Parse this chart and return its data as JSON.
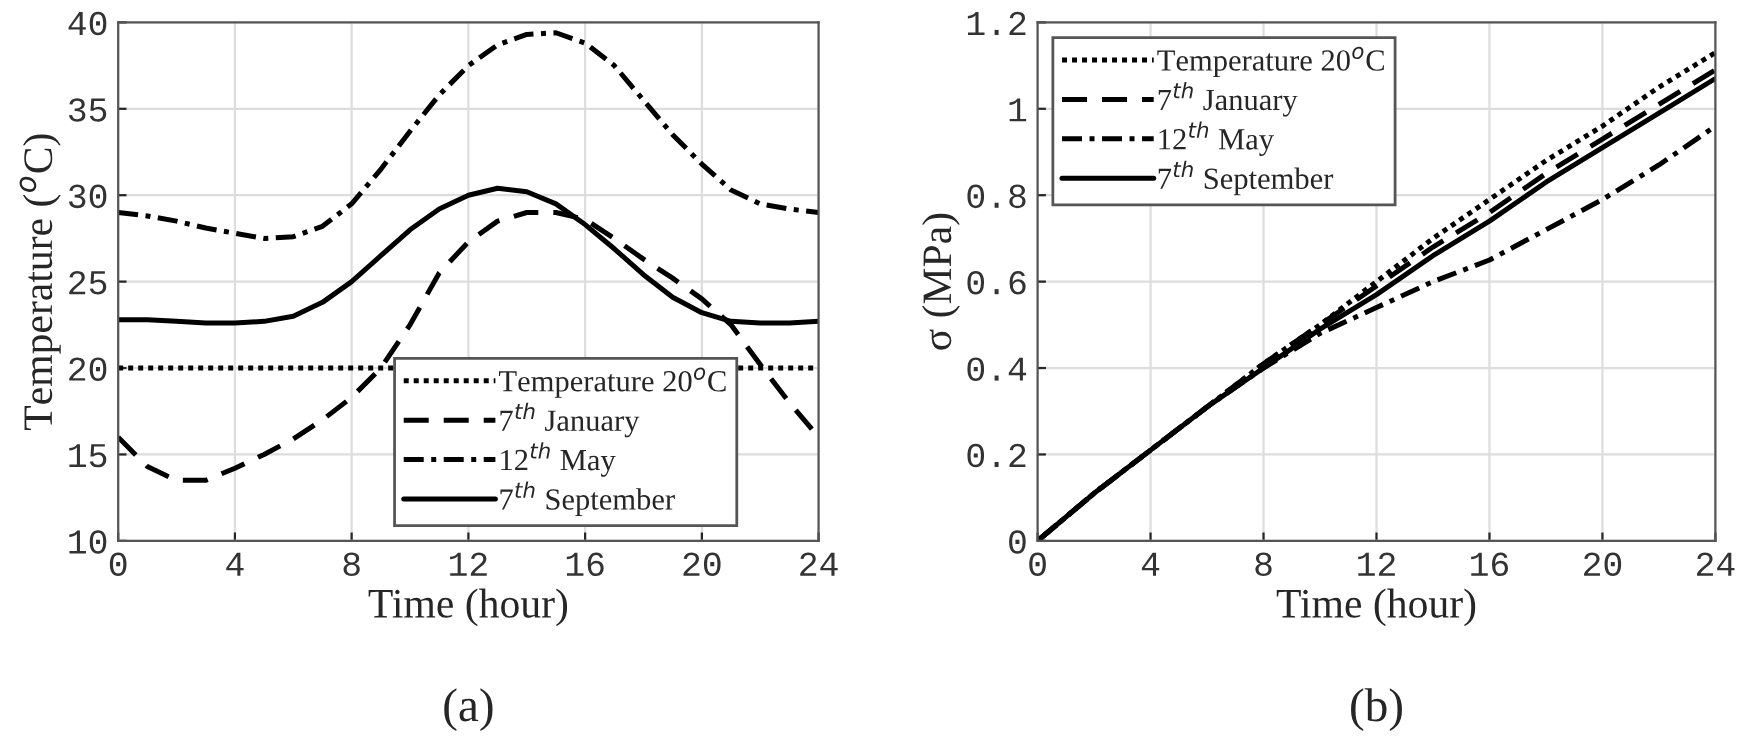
{
  "chart_data": [
    {
      "type": "line",
      "xlabel": "Time (hour)",
      "ylabel": "Temperature ($^{o}$C)",
      "xlim": [
        0,
        24
      ],
      "ylim": [
        10,
        40
      ],
      "xticks": [
        0,
        4,
        8,
        12,
        16,
        20,
        24
      ],
      "yticks": [
        10,
        15,
        20,
        25,
        30,
        35,
        40
      ],
      "grid": true,
      "legend": "bottom right",
      "annotations": [
        "(a)"
      ],
      "series": [
        {
          "name": "Temperature 20$^{o}$C",
          "color": "#000000",
          "line_style": "dotted",
          "x": [
            0,
            24
          ],
          "values": [
            20,
            20
          ]
        },
        {
          "name": "7$^{th}$ January",
          "color": "#000000",
          "line_style": "dashed",
          "x": [
            0,
            1,
            2,
            3,
            4,
            5,
            6,
            7,
            8,
            9,
            10,
            11,
            12,
            13,
            14,
            15,
            16,
            17,
            18,
            19,
            20,
            21,
            22,
            23,
            24
          ],
          "values": [
            16,
            14.3,
            13.5,
            13.5,
            14.2,
            15,
            15.9,
            17,
            18.3,
            20,
            22.5,
            25.5,
            27.3,
            28.5,
            29,
            29,
            28.6,
            27.5,
            26.3,
            25.2,
            24,
            22.5,
            20.2,
            18,
            16
          ]
        },
        {
          "name": "12$^{th}$ May",
          "color": "#000000",
          "line_style": "dashdot",
          "x": [
            0,
            1,
            2,
            3,
            4,
            5,
            6,
            7,
            8,
            9,
            10,
            11,
            12,
            13,
            14,
            15,
            16,
            17,
            18,
            19,
            20,
            21,
            22,
            23,
            24
          ],
          "values": [
            29,
            28.8,
            28.5,
            28.1,
            27.8,
            27.5,
            27.6,
            28.2,
            29.5,
            31.5,
            33.7,
            35.8,
            37.5,
            38.7,
            39.3,
            39.4,
            38.8,
            37.5,
            35.5,
            33.5,
            31.8,
            30.3,
            29.5,
            29.2,
            29
          ]
        },
        {
          "name": "7$^{th}$ September",
          "color": "#000000",
          "line_style": "solid",
          "x": [
            0,
            1,
            2,
            3,
            4,
            5,
            6,
            7,
            8,
            9,
            10,
            11,
            12,
            13,
            14,
            15,
            16,
            17,
            18,
            19,
            20,
            21,
            22,
            23,
            24
          ],
          "values": [
            22.8,
            22.8,
            22.7,
            22.6,
            22.6,
            22.7,
            23,
            23.8,
            25,
            26.5,
            28,
            29.2,
            30,
            30.4,
            30.2,
            29.5,
            28.3,
            26.9,
            25.4,
            24.1,
            23.2,
            22.7,
            22.6,
            22.6,
            22.7
          ]
        }
      ]
    },
    {
      "type": "line",
      "xlabel": "Time (hour)",
      "ylabel": "σ (MPa)",
      "xlim": [
        0,
        24
      ],
      "ylim": [
        0,
        1.2
      ],
      "xticks": [
        0,
        4,
        8,
        12,
        16,
        20,
        24
      ],
      "yticks": [
        0,
        0.2,
        0.4,
        0.6,
        0.8,
        1,
        1.2
      ],
      "grid": true,
      "legend": "top left",
      "annotations": [
        "(b)"
      ],
      "series": [
        {
          "name": "Temperature 20$^{o}$C",
          "color": "#000000",
          "line_style": "dotted",
          "x": [
            0,
            2,
            4,
            6,
            8,
            10,
            12,
            14,
            16,
            18,
            20,
            22,
            24
          ],
          "values": [
            0,
            0.11,
            0.21,
            0.31,
            0.41,
            0.5,
            0.6,
            0.7,
            0.79,
            0.88,
            0.96,
            1.05,
            1.13
          ]
        },
        {
          "name": "7$^{th}$ January",
          "color": "#000000",
          "line_style": "dashed",
          "x": [
            0,
            2,
            4,
            6,
            8,
            10,
            12,
            14,
            16,
            18,
            20,
            22,
            24
          ],
          "values": [
            0,
            0.11,
            0.21,
            0.31,
            0.41,
            0.5,
            0.59,
            0.68,
            0.76,
            0.85,
            0.93,
            1.01,
            1.09
          ]
        },
        {
          "name": "12$^{th}$ May",
          "color": "#000000",
          "line_style": "dashdot",
          "x": [
            0,
            2,
            4,
            6,
            8,
            10,
            12,
            14,
            16,
            18,
            20,
            22,
            24
          ],
          "values": [
            0,
            0.11,
            0.21,
            0.31,
            0.4,
            0.48,
            0.54,
            0.6,
            0.65,
            0.72,
            0.79,
            0.87,
            0.96
          ]
        },
        {
          "name": "7$^{th}$ September",
          "color": "#000000",
          "line_style": "solid",
          "x": [
            0,
            2,
            4,
            6,
            8,
            10,
            12,
            14,
            16,
            18,
            20,
            22,
            24
          ],
          "values": [
            0,
            0.11,
            0.21,
            0.31,
            0.4,
            0.49,
            0.57,
            0.66,
            0.74,
            0.83,
            0.91,
            0.99,
            1.07
          ]
        }
      ]
    }
  ]
}
